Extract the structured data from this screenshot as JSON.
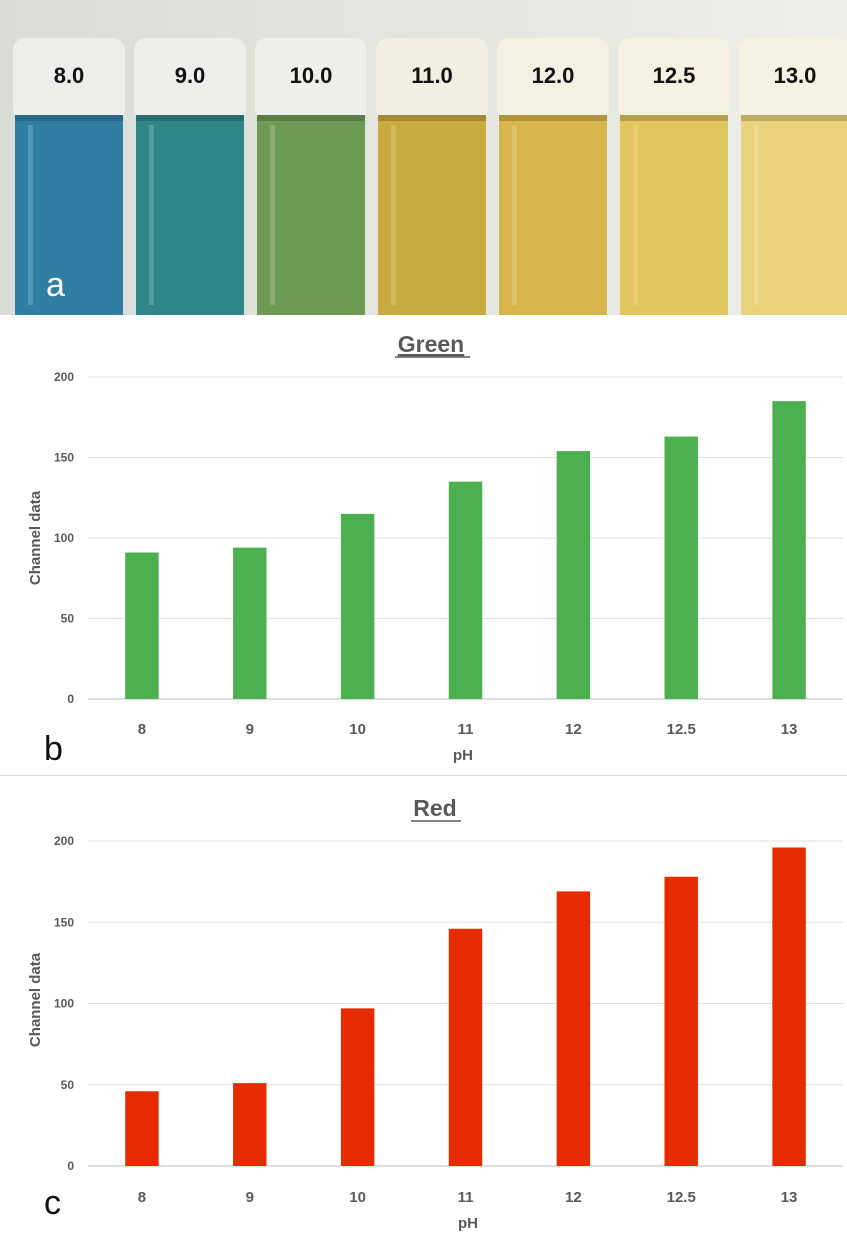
{
  "photo": {
    "panel_letter": "a",
    "tubes": [
      {
        "label": "8.0",
        "fill": "#2f7fa3",
        "cap": "#eceee9"
      },
      {
        "label": "9.0",
        "fill": "#2e8688",
        "cap": "#eceee9"
      },
      {
        "label": "10.0",
        "fill": "#6f9a55",
        "cap": "#eeefe8"
      },
      {
        "label": "11.0",
        "fill": "#c9aa3f",
        "cap": "#f1efe4"
      },
      {
        "label": "12.0",
        "fill": "#d8b54a",
        "cap": "#f3f0e2"
      },
      {
        "label": "12.5",
        "fill": "#e2c55d",
        "cap": "#f4f1e2"
      },
      {
        "label": "13.0",
        "fill": "#ead27c",
        "cap": "#f5f2e4"
      }
    ]
  },
  "chart_data": [
    {
      "type": "bar",
      "panel_letter": "b",
      "title": "Green",
      "xlabel": "pH",
      "ylabel": "Channel data",
      "categories": [
        "8",
        "9",
        "10",
        "11",
        "12",
        "12.5",
        "13"
      ],
      "values": [
        91,
        94,
        115,
        135,
        154,
        163,
        185
      ],
      "ylim": [
        0,
        200
      ],
      "yticks": [
        "0",
        "50",
        "100",
        "150",
        "200"
      ],
      "grid": true,
      "color": "#4caf50"
    },
    {
      "type": "bar",
      "panel_letter": "c",
      "title": "Red",
      "xlabel": "pH",
      "ylabel": "Channel data",
      "categories": [
        "8",
        "9",
        "10",
        "11",
        "12",
        "12.5",
        "13"
      ],
      "values": [
        46,
        51,
        97,
        146,
        169,
        178,
        196
      ],
      "ylim": [
        0,
        200
      ],
      "yticks": [
        "0",
        "50",
        "100",
        "150",
        "200"
      ],
      "grid": true,
      "color": "#e62b00"
    }
  ]
}
